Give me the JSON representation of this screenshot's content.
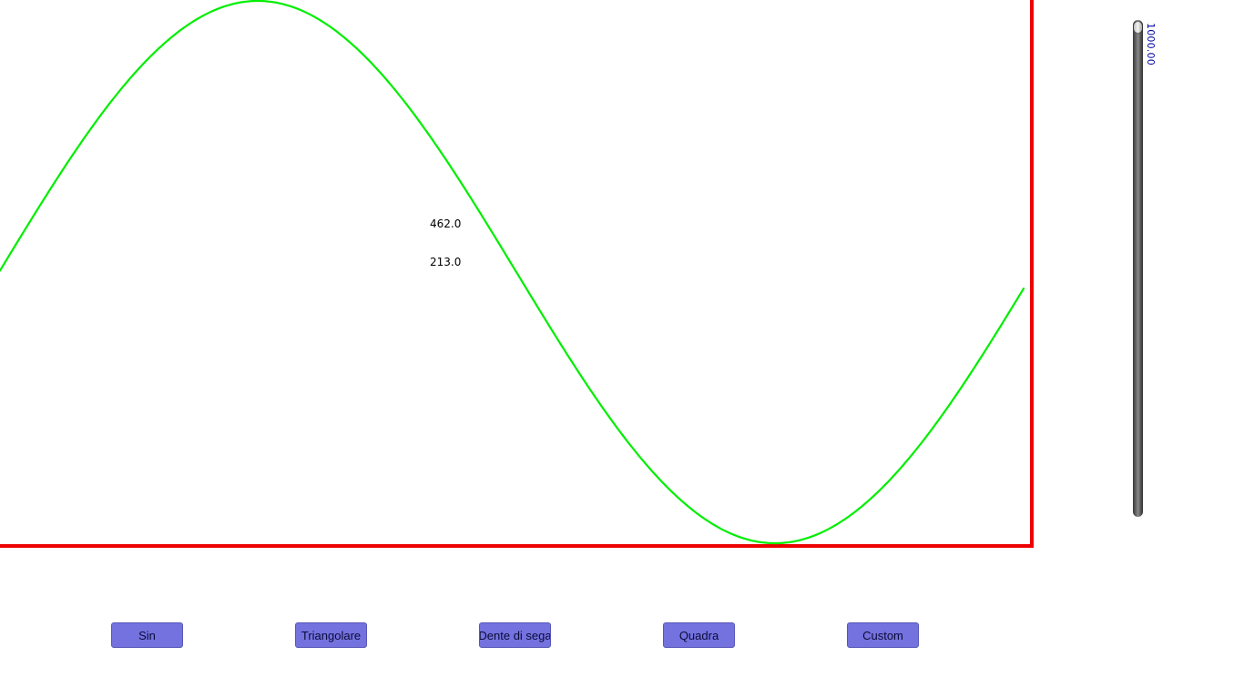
{
  "readout": {
    "line1": "462.0",
    "line2": "213.0"
  },
  "slider": {
    "value_label": "1000.00",
    "fraction": 1.0
  },
  "buttons": {
    "sin": "Sin",
    "triangolare": "Triangolare",
    "dente_di_sega": "Dente di sega",
    "quadra": "Quadra",
    "custom": "Custom"
  },
  "colors": {
    "wave": "#00ee00",
    "frame": "#ee0000",
    "button_bg": "#7472de",
    "slider_label": "#0000a0"
  },
  "wave": {
    "type": "sine"
  }
}
